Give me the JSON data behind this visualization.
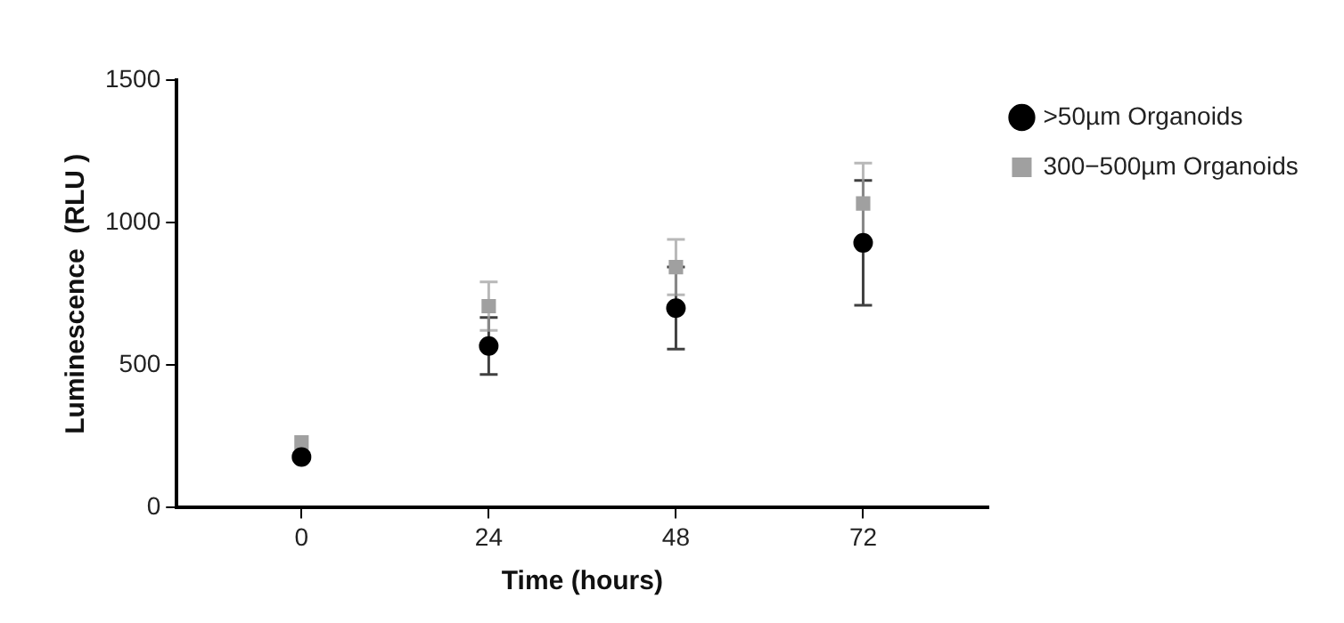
{
  "chart_data": {
    "type": "scatter",
    "xlabel": "Time (hours)",
    "ylabel": "Luminescence  (RLU )",
    "x": [
      0,
      24,
      48,
      72
    ],
    "xlim": [
      -16,
      88
    ],
    "xticks": [
      0,
      24,
      48,
      72
    ],
    "ylim": [
      0,
      1500
    ],
    "yticks": [
      0,
      500,
      1000,
      1500
    ],
    "grid": false,
    "legend": "top right",
    "series": [
      {
        "name": ">50µm Organoids",
        "color": "#000000",
        "marker": "circle",
        "values": [
          178,
          567,
          700,
          929
        ],
        "errors": [
          null,
          100,
          144,
          219
        ]
      },
      {
        "name": "300−500µm Organoids",
        "color": "#a0a0a0",
        "marker": "square",
        "values": [
          229,
          707,
          844,
          1067
        ],
        "errors": [
          null,
          85,
          97,
          142
        ]
      }
    ]
  }
}
